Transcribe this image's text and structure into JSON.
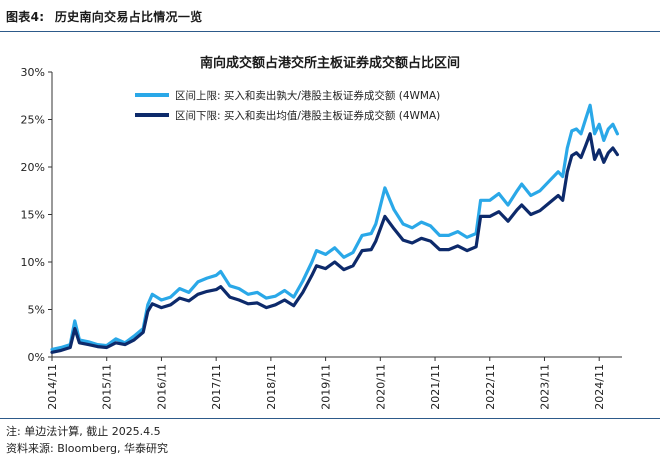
{
  "figure": {
    "label": "图表4:",
    "caption": "历史南向交易占比情况一览"
  },
  "chart_data": {
    "type": "line",
    "title": "南向成交额占港交所主板证券成交额占比区间",
    "xlabel": "",
    "ylabel": "",
    "ylim": [
      0,
      30
    ],
    "yticks": [
      "0%",
      "5%",
      "10%",
      "15%",
      "20%",
      "25%",
      "30%"
    ],
    "xticks": [
      "2014/11",
      "2015/11",
      "2016/11",
      "2017/11",
      "2018/11",
      "2019/11",
      "2020/11",
      "2021/11",
      "2022/11",
      "2023/11",
      "2024/11"
    ],
    "grid": false,
    "legend_position": "top-left",
    "colors": {
      "upper": "#2aa8e8",
      "lower": "#0d2a6b"
    },
    "series": [
      {
        "name": "区间上限: 买入和卖出孰大/港股主板证券成交额 (4WMA)",
        "points": [
          [
            "2014-11",
            0.8
          ],
          [
            "2015-01",
            1.0
          ],
          [
            "2015-03",
            1.3
          ],
          [
            "2015-04",
            3.8
          ],
          [
            "2015-05",
            1.8
          ],
          [
            "2015-07",
            1.6
          ],
          [
            "2015-09",
            1.3
          ],
          [
            "2015-11",
            1.2
          ],
          [
            "2016-01",
            1.9
          ],
          [
            "2016-03",
            1.5
          ],
          [
            "2016-05",
            2.2
          ],
          [
            "2016-07",
            3.0
          ],
          [
            "2016-08",
            5.5
          ],
          [
            "2016-09",
            6.6
          ],
          [
            "2016-11",
            6.0
          ],
          [
            "2017-01",
            6.3
          ],
          [
            "2017-03",
            7.2
          ],
          [
            "2017-05",
            6.8
          ],
          [
            "2017-07",
            7.9
          ],
          [
            "2017-09",
            8.3
          ],
          [
            "2017-11",
            8.6
          ],
          [
            "2017-12",
            9.0
          ],
          [
            "2018-02",
            7.5
          ],
          [
            "2018-04",
            7.2
          ],
          [
            "2018-06",
            6.6
          ],
          [
            "2018-08",
            6.8
          ],
          [
            "2018-10",
            6.2
          ],
          [
            "2018-12",
            6.4
          ],
          [
            "2019-02",
            7.0
          ],
          [
            "2019-04",
            6.3
          ],
          [
            "2019-06",
            8.0
          ],
          [
            "2019-08",
            10.0
          ],
          [
            "2019-09",
            11.2
          ],
          [
            "2019-11",
            10.8
          ],
          [
            "2020-01",
            11.5
          ],
          [
            "2020-03",
            10.5
          ],
          [
            "2020-05",
            11.0
          ],
          [
            "2020-07",
            12.8
          ],
          [
            "2020-09",
            13.0
          ],
          [
            "2020-10",
            14.0
          ],
          [
            "2020-12",
            17.8
          ],
          [
            "2021-02",
            15.5
          ],
          [
            "2021-04",
            14.0
          ],
          [
            "2021-06",
            13.6
          ],
          [
            "2021-08",
            14.2
          ],
          [
            "2021-10",
            13.8
          ],
          [
            "2021-12",
            12.8
          ],
          [
            "2022-02",
            12.8
          ],
          [
            "2022-04",
            13.2
          ],
          [
            "2022-06",
            12.6
          ],
          [
            "2022-08",
            13.0
          ],
          [
            "2022-09",
            16.5
          ],
          [
            "2022-11",
            16.5
          ],
          [
            "2023-01",
            17.2
          ],
          [
            "2023-03",
            16.0
          ],
          [
            "2023-05",
            17.5
          ],
          [
            "2023-06",
            18.2
          ],
          [
            "2023-08",
            17.0
          ],
          [
            "2023-10",
            17.5
          ],
          [
            "2023-12",
            18.5
          ],
          [
            "2024-02",
            19.5
          ],
          [
            "2024-03",
            19.0
          ],
          [
            "2024-04",
            22.0
          ],
          [
            "2024-05",
            23.8
          ],
          [
            "2024-06",
            24.0
          ],
          [
            "2024-07",
            23.5
          ],
          [
            "2024-08",
            25.0
          ],
          [
            "2024-09",
            26.5
          ],
          [
            "2024-10",
            23.5
          ],
          [
            "2024-11",
            24.5
          ],
          [
            "2024-12",
            22.8
          ],
          [
            "2025-01",
            24.0
          ],
          [
            "2025-02",
            24.5
          ],
          [
            "2025-03",
            23.5
          ]
        ]
      },
      {
        "name": "区间下限: 买入和卖出均值/港股主板证券成交额 (4WMA)",
        "points": [
          [
            "2014-11",
            0.5
          ],
          [
            "2015-01",
            0.7
          ],
          [
            "2015-03",
            1.0
          ],
          [
            "2015-04",
            3.0
          ],
          [
            "2015-05",
            1.5
          ],
          [
            "2015-07",
            1.3
          ],
          [
            "2015-09",
            1.1
          ],
          [
            "2015-11",
            1.0
          ],
          [
            "2016-01",
            1.5
          ],
          [
            "2016-03",
            1.3
          ],
          [
            "2016-05",
            1.8
          ],
          [
            "2016-07",
            2.6
          ],
          [
            "2016-08",
            4.8
          ],
          [
            "2016-09",
            5.6
          ],
          [
            "2016-11",
            5.2
          ],
          [
            "2017-01",
            5.5
          ],
          [
            "2017-03",
            6.2
          ],
          [
            "2017-05",
            5.9
          ],
          [
            "2017-07",
            6.6
          ],
          [
            "2017-09",
            6.9
          ],
          [
            "2017-11",
            7.1
          ],
          [
            "2017-12",
            7.4
          ],
          [
            "2018-02",
            6.3
          ],
          [
            "2018-04",
            6.0
          ],
          [
            "2018-06",
            5.6
          ],
          [
            "2018-08",
            5.7
          ],
          [
            "2018-10",
            5.2
          ],
          [
            "2018-12",
            5.5
          ],
          [
            "2019-02",
            6.0
          ],
          [
            "2019-04",
            5.4
          ],
          [
            "2019-06",
            6.8
          ],
          [
            "2019-08",
            8.6
          ],
          [
            "2019-09",
            9.6
          ],
          [
            "2019-11",
            9.3
          ],
          [
            "2020-01",
            10.0
          ],
          [
            "2020-03",
            9.2
          ],
          [
            "2020-05",
            9.6
          ],
          [
            "2020-07",
            11.2
          ],
          [
            "2020-09",
            11.3
          ],
          [
            "2020-10",
            12.2
          ],
          [
            "2020-12",
            14.8
          ],
          [
            "2021-02",
            13.5
          ],
          [
            "2021-04",
            12.3
          ],
          [
            "2021-06",
            12.0
          ],
          [
            "2021-08",
            12.5
          ],
          [
            "2021-10",
            12.2
          ],
          [
            "2021-12",
            11.3
          ],
          [
            "2022-02",
            11.3
          ],
          [
            "2022-04",
            11.7
          ],
          [
            "2022-06",
            11.2
          ],
          [
            "2022-08",
            11.6
          ],
          [
            "2022-09",
            14.8
          ],
          [
            "2022-11",
            14.8
          ],
          [
            "2023-01",
            15.3
          ],
          [
            "2023-03",
            14.3
          ],
          [
            "2023-05",
            15.5
          ],
          [
            "2023-06",
            16.0
          ],
          [
            "2023-08",
            15.0
          ],
          [
            "2023-10",
            15.4
          ],
          [
            "2023-12",
            16.2
          ],
          [
            "2024-02",
            17.0
          ],
          [
            "2024-03",
            16.5
          ],
          [
            "2024-04",
            19.5
          ],
          [
            "2024-05",
            21.2
          ],
          [
            "2024-06",
            21.5
          ],
          [
            "2024-07",
            21.0
          ],
          [
            "2024-08",
            22.2
          ],
          [
            "2024-09",
            23.5
          ],
          [
            "2024-10",
            20.8
          ],
          [
            "2024-11",
            21.8
          ],
          [
            "2024-12",
            20.5
          ],
          [
            "2025-01",
            21.5
          ],
          [
            "2025-02",
            22.0
          ],
          [
            "2025-03",
            21.3
          ]
        ]
      }
    ]
  },
  "footer": {
    "note": "注: 单边法计算, 截止 2025.4.5",
    "source": "资料来源: Bloomberg, 华泰研究"
  }
}
